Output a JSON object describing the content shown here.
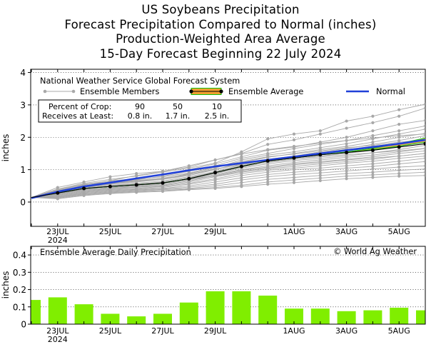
{
  "titles": {
    "line1": "US Soybeans Precipitation",
    "line2": "Forecast Precipitation Compared to Normal (inches)",
    "line3": "Production-Weighted Area Average",
    "line4": "15-Day Forecast Beginning 22 July 2024"
  },
  "colors": {
    "members": "#a8a8a8",
    "ensemble_line": "#000000",
    "ensemble_band": "#f0a030",
    "ensemble_band_edge": "#10c010",
    "normal": "#2040d8",
    "bars": "#80ee00"
  },
  "chart_data": [
    {
      "type": "line",
      "ylabel": "inches",
      "ylim": [
        -0.75,
        4.1
      ],
      "yticks": [
        0,
        1,
        2,
        3,
        4
      ],
      "x_tick_labels": [
        {
          "day": 1,
          "label": "23JUL",
          "sublabel": "2024"
        },
        {
          "day": 3,
          "label": "25JUL"
        },
        {
          "day": 5,
          "label": "27JUL"
        },
        {
          "day": 7,
          "label": "29JUL"
        },
        {
          "day": 10,
          "label": "1AUG"
        },
        {
          "day": 12,
          "label": "3AUG"
        },
        {
          "day": 14,
          "label": "5AUG"
        }
      ],
      "x": [
        0,
        1,
        2,
        3,
        4,
        5,
        6,
        7,
        8,
        9,
        10,
        11,
        12,
        13,
        14,
        15
      ],
      "legend": {
        "title": "National Weather Service Global Forecast System",
        "members_label": "Ensemble Members",
        "average_label": "Ensemble Average",
        "normal_label": "Normal"
      },
      "crop_table": {
        "row1_label": "Percent of Crop:",
        "row2_label": "Receives at Least:",
        "percents": [
          "90",
          "50",
          "10"
        ],
        "amounts": [
          "0.8 in.",
          "1.7 in.",
          "2.5 in."
        ]
      },
      "normal": [
        0.12,
        0.32,
        0.48,
        0.6,
        0.73,
        0.85,
        0.98,
        1.1,
        1.2,
        1.3,
        1.4,
        1.5,
        1.6,
        1.7,
        1.8,
        1.92
      ],
      "ensemble_average": [
        0.14,
        0.28,
        0.42,
        0.48,
        0.53,
        0.59,
        0.72,
        0.91,
        1.1,
        1.27,
        1.36,
        1.46,
        1.53,
        1.6,
        1.7,
        1.8
      ],
      "ensemble_band_low": [
        0.14,
        0.28,
        0.42,
        0.48,
        0.53,
        0.59,
        0.72,
        0.91,
        1.1,
        1.27,
        1.36,
        1.46,
        1.53,
        1.62,
        1.73,
        1.85
      ],
      "ensemble_band_high": [
        0.14,
        0.28,
        0.42,
        0.48,
        0.53,
        0.59,
        0.72,
        0.91,
        1.1,
        1.27,
        1.36,
        1.46,
        1.55,
        1.66,
        1.8,
        1.98
      ],
      "ensemble_members": [
        [
          0.14,
          0.45,
          0.62,
          0.78,
          0.88,
          0.95,
          1.08,
          1.3,
          1.5,
          1.78,
          1.92,
          2.1,
          2.28,
          2.45,
          2.65,
          2.9
        ],
        [
          0.14,
          0.4,
          0.58,
          0.7,
          0.8,
          0.92,
          1.05,
          1.2,
          1.55,
          1.95,
          2.1,
          2.2,
          2.5,
          2.65,
          2.85,
          3.02
        ],
        [
          0.14,
          0.38,
          0.55,
          0.65,
          0.72,
          0.85,
          1.0,
          1.18,
          1.4,
          1.6,
          1.7,
          1.85,
          2.0,
          2.2,
          2.4,
          2.52
        ],
        [
          0.14,
          0.35,
          0.5,
          0.62,
          0.68,
          0.8,
          0.95,
          1.12,
          1.35,
          1.5,
          1.65,
          1.78,
          1.9,
          2.05,
          2.2,
          2.35
        ],
        [
          0.14,
          0.33,
          0.48,
          0.58,
          0.65,
          0.72,
          0.88,
          1.05,
          1.3,
          1.45,
          1.55,
          1.68,
          1.8,
          1.95,
          2.1,
          2.25
        ],
        [
          0.14,
          0.3,
          0.45,
          0.55,
          0.62,
          0.7,
          0.82,
          1.0,
          1.22,
          1.38,
          1.5,
          1.62,
          1.72,
          1.85,
          2.0,
          2.12
        ],
        [
          0.14,
          0.3,
          0.45,
          0.52,
          0.58,
          0.65,
          0.78,
          0.95,
          1.15,
          1.32,
          1.42,
          1.55,
          1.65,
          1.78,
          1.9,
          2.05
        ],
        [
          0.14,
          0.28,
          0.42,
          0.5,
          0.55,
          0.62,
          0.75,
          0.92,
          1.12,
          1.28,
          1.38,
          1.48,
          1.58,
          1.68,
          1.8,
          1.95
        ],
        [
          0.14,
          0.27,
          0.4,
          0.48,
          0.53,
          0.6,
          0.72,
          0.9,
          1.08,
          1.22,
          1.32,
          1.42,
          1.5,
          1.6,
          1.72,
          1.85
        ],
        [
          0.14,
          0.26,
          0.38,
          0.45,
          0.5,
          0.58,
          0.7,
          0.88,
          1.05,
          1.18,
          1.28,
          1.35,
          1.42,
          1.52,
          1.62,
          1.75
        ],
        [
          0.14,
          0.25,
          0.38,
          0.44,
          0.48,
          0.55,
          0.68,
          0.85,
          1.0,
          1.12,
          1.22,
          1.3,
          1.38,
          1.45,
          1.55,
          1.65
        ],
        [
          0.14,
          0.24,
          0.36,
          0.42,
          0.46,
          0.52,
          0.65,
          0.82,
          0.98,
          1.08,
          1.18,
          1.25,
          1.32,
          1.4,
          1.5,
          1.58
        ],
        [
          0.14,
          0.22,
          0.34,
          0.4,
          0.45,
          0.5,
          0.62,
          0.78,
          0.92,
          1.02,
          1.1,
          1.18,
          1.25,
          1.32,
          1.42,
          1.5
        ],
        [
          0.14,
          0.2,
          0.32,
          0.38,
          0.42,
          0.48,
          0.58,
          0.72,
          0.88,
          0.98,
          1.05,
          1.12,
          1.2,
          1.26,
          1.35,
          1.42
        ],
        [
          0.14,
          0.18,
          0.3,
          0.36,
          0.4,
          0.45,
          0.55,
          0.68,
          0.82,
          0.92,
          1.0,
          1.05,
          1.12,
          1.18,
          1.26,
          1.35
        ],
        [
          0.14,
          0.16,
          0.28,
          0.34,
          0.38,
          0.42,
          0.5,
          0.62,
          0.75,
          0.85,
          0.92,
          0.98,
          1.05,
          1.1,
          1.18,
          1.25
        ],
        [
          0.14,
          0.15,
          0.26,
          0.32,
          0.36,
          0.4,
          0.46,
          0.55,
          0.68,
          0.78,
          0.85,
          0.9,
          0.96,
          1.02,
          1.08,
          1.12
        ],
        [
          0.14,
          0.14,
          0.24,
          0.3,
          0.34,
          0.38,
          0.42,
          0.5,
          0.6,
          0.7,
          0.76,
          0.82,
          0.88,
          0.92,
          0.98,
          1.02
        ],
        [
          0.14,
          0.12,
          0.22,
          0.28,
          0.32,
          0.35,
          0.4,
          0.45,
          0.52,
          0.62,
          0.68,
          0.74,
          0.8,
          0.84,
          0.88,
          0.92
        ],
        [
          0.14,
          0.1,
          0.2,
          0.26,
          0.3,
          0.33,
          0.38,
          0.42,
          0.48,
          0.55,
          0.6,
          0.66,
          0.72,
          0.76,
          0.8,
          0.82
        ],
        [
          0.14,
          0.33,
          0.52,
          0.66,
          0.82,
          0.95,
          1.12,
          1.3,
          1.48,
          1.62,
          1.72,
          1.82,
          1.9,
          1.98,
          2.05,
          2.1
        ],
        [
          0.14,
          0.36,
          0.54,
          0.62,
          0.7,
          0.78,
          0.9,
          1.08,
          1.25,
          1.4,
          1.48,
          1.58,
          1.68,
          1.75,
          1.85,
          1.92
        ],
        [
          0.14,
          0.28,
          0.5,
          0.6,
          0.66,
          0.74,
          0.86,
          1.0,
          1.18,
          1.3,
          1.4,
          1.52,
          1.62,
          1.72,
          1.82,
          1.9
        ],
        [
          0.14,
          0.32,
          0.46,
          0.56,
          0.64,
          0.7,
          0.85,
          1.02,
          1.16,
          1.25,
          1.32,
          1.4,
          1.46,
          1.52,
          1.58,
          1.66
        ],
        [
          0.14,
          0.25,
          0.4,
          0.5,
          0.56,
          0.6,
          0.7,
          0.8,
          0.95,
          1.05,
          1.15,
          1.22,
          1.3,
          1.36,
          1.42,
          1.5
        ]
      ]
    },
    {
      "type": "bar",
      "title": "Ensemble Average Daily Precipitation",
      "credit": "© World Ag Weather",
      "ylabel": "inches",
      "ylim": [
        0,
        0.45
      ],
      "yticks": [
        "0",
        "0.1",
        "0.2",
        "0.3",
        "0.4"
      ],
      "ytick_values": [
        0,
        0.1,
        0.2,
        0.3,
        0.4
      ],
      "x": [
        0,
        1,
        2,
        3,
        4,
        5,
        6,
        7,
        8,
        9,
        10,
        11,
        12,
        13,
        14,
        15
      ],
      "values": [
        0.14,
        0.155,
        0.115,
        0.06,
        0.045,
        0.06,
        0.125,
        0.19,
        0.19,
        0.165,
        0.09,
        0.09,
        0.075,
        0.08,
        0.095,
        0.08
      ]
    }
  ]
}
